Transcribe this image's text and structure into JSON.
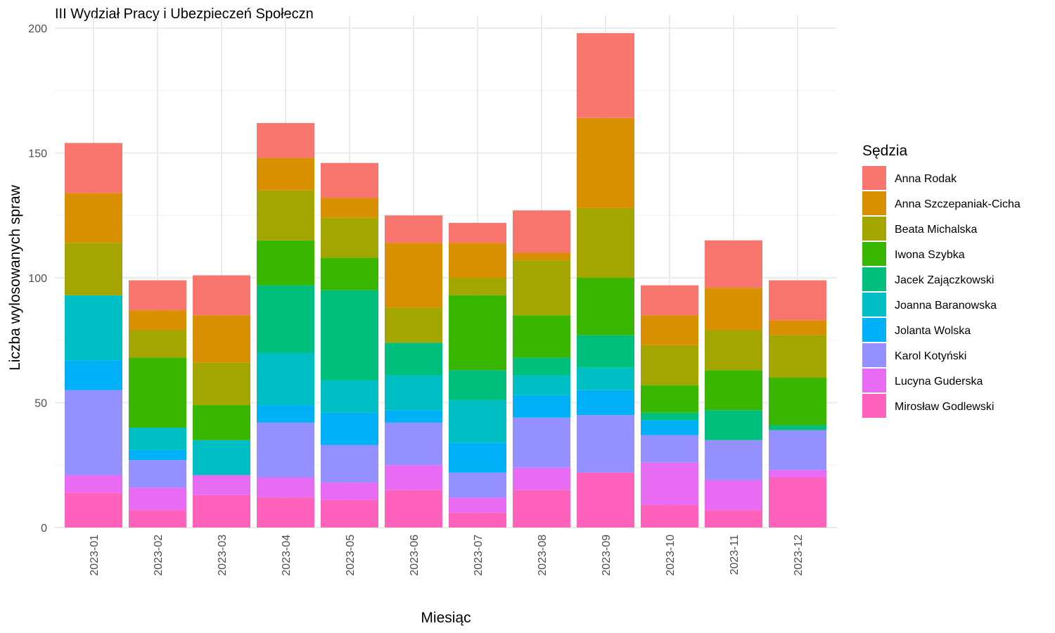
{
  "chart_data": {
    "type": "bar",
    "stacked": true,
    "title": "III Wydział Pracy i Ubezpieczeń Społeczn",
    "xlabel": "Miesiąc",
    "ylabel": "Liczba wylosowanych spraw",
    "ylim": [
      0,
      200
    ],
    "yticks": [
      0,
      50,
      100,
      150,
      200
    ],
    "grid": true,
    "legend_title": "Sędzia",
    "legend_position": "right",
    "categories": [
      "2023-01",
      "2023-02",
      "2023-03",
      "2023-04",
      "2023-05",
      "2023-06",
      "2023-07",
      "2023-08",
      "2023-09",
      "2023-10",
      "2023-11",
      "2023-12"
    ],
    "series": [
      {
        "name": "Anna Rodak",
        "color": "#F8766D",
        "values": [
          20,
          12,
          16,
          14,
          14,
          11,
          8,
          17,
          34,
          12,
          19,
          16
        ]
      },
      {
        "name": "Anna Szczepaniak-Cicha",
        "color": "#D89000",
        "values": [
          20,
          8,
          19,
          13,
          8,
          26,
          14,
          3,
          36,
          12,
          17,
          6
        ]
      },
      {
        "name": "Beata Michalska",
        "color": "#A3A500",
        "values": [
          21,
          11,
          17,
          20,
          16,
          14,
          7,
          22,
          28,
          16,
          16,
          17
        ]
      },
      {
        "name": "Iwona Szybka",
        "color": "#39B600",
        "values": [
          0,
          28,
          14,
          18,
          13,
          0,
          30,
          17,
          23,
          11,
          16,
          19
        ]
      },
      {
        "name": "Jacek Zajączkowski",
        "color": "#00BF7D",
        "values": [
          0,
          0,
          0,
          27,
          36,
          13,
          12,
          7,
          13,
          3,
          12,
          2
        ]
      },
      {
        "name": "Joanna Baranowska",
        "color": "#00BFC4",
        "values": [
          26,
          9,
          14,
          21,
          13,
          14,
          17,
          8,
          9,
          0,
          0,
          0
        ]
      },
      {
        "name": "Jolanta Wolska",
        "color": "#00B0F6",
        "values": [
          12,
          4,
          0,
          7,
          13,
          5,
          12,
          9,
          10,
          6,
          0,
          0
        ]
      },
      {
        "name": "Karol Kotyński",
        "color": "#9590FF",
        "values": [
          34,
          11,
          0,
          22,
          15,
          17,
          10,
          20,
          23,
          11,
          16,
          16
        ]
      },
      {
        "name": "Lucyna Guderska",
        "color": "#E76BF3",
        "values": [
          7,
          9,
          8,
          8,
          7,
          10,
          6,
          9,
          0,
          17,
          12,
          3
        ]
      },
      {
        "name": "Mirosław Godlewski",
        "color": "#FF62BC",
        "values": [
          14,
          7,
          13,
          12,
          11,
          15,
          6,
          15,
          22,
          9,
          7,
          20
        ]
      }
    ]
  }
}
